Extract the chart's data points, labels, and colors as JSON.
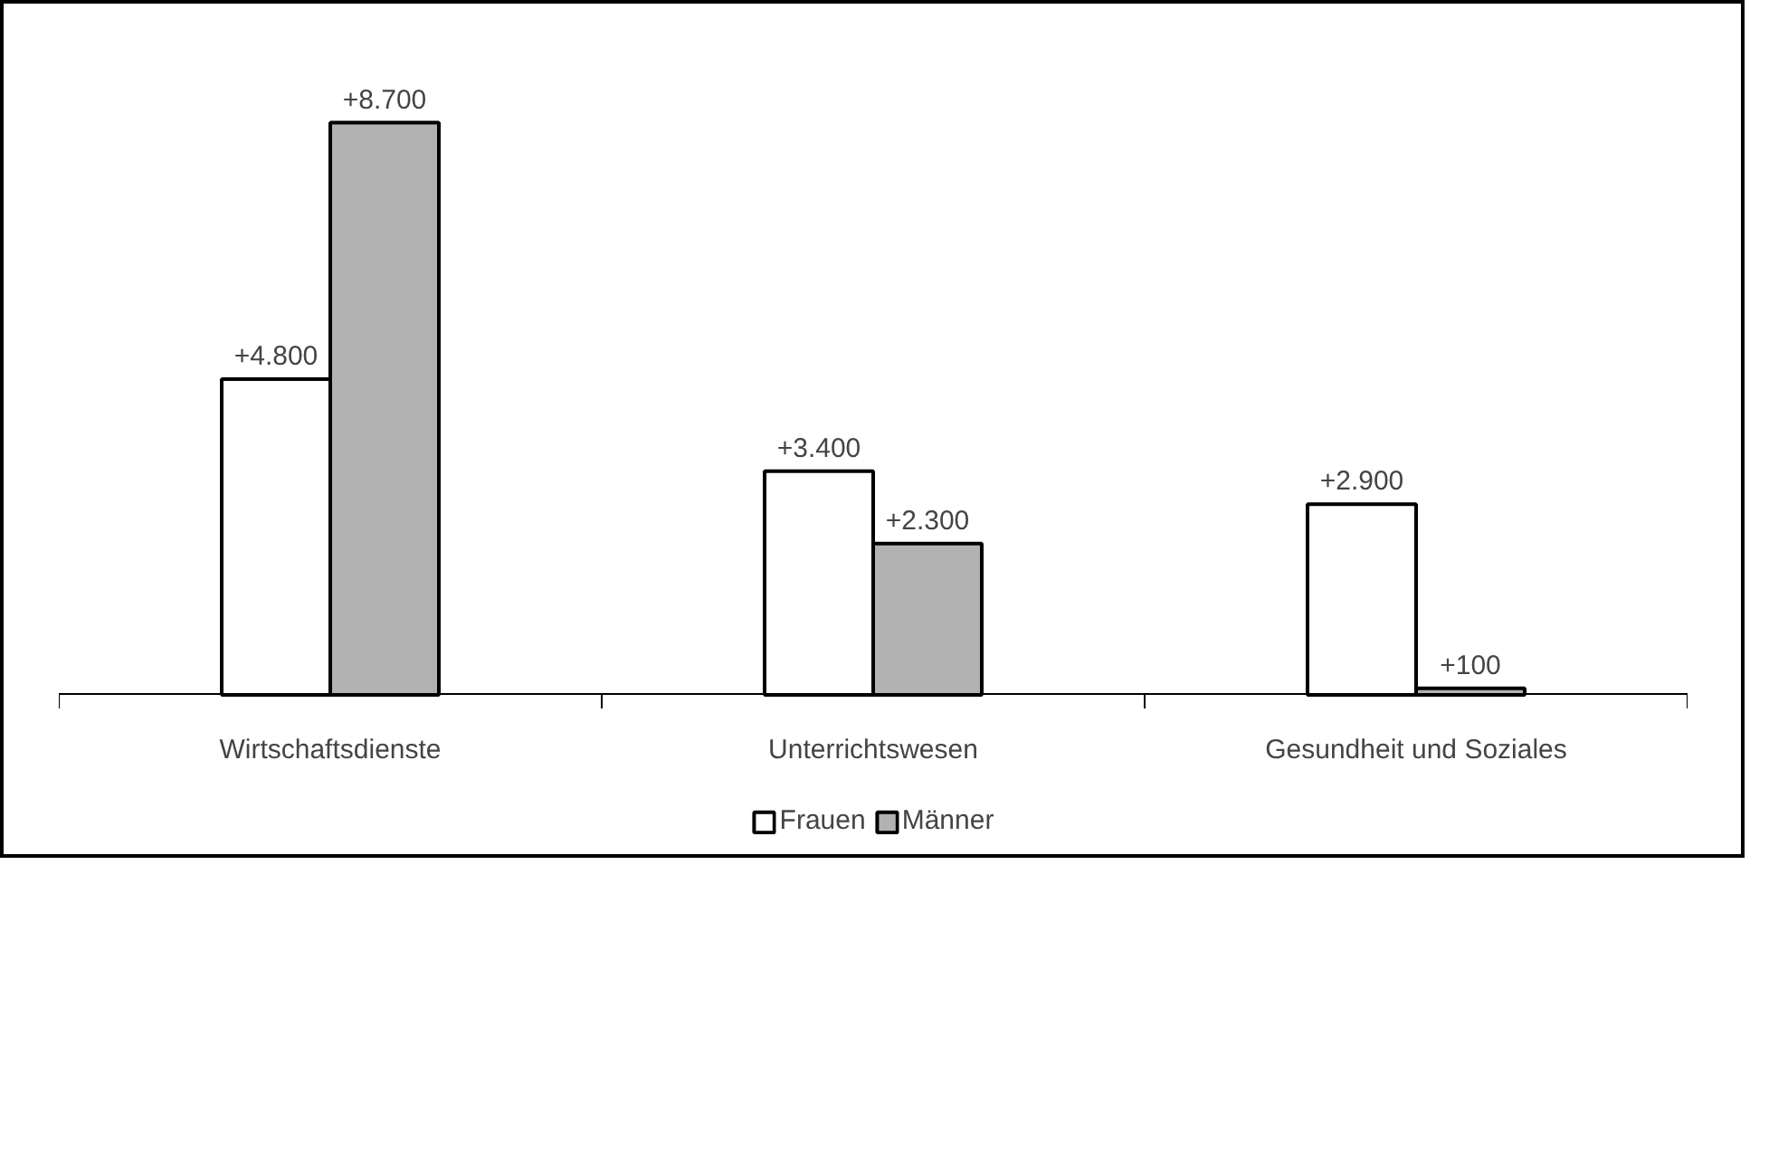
{
  "chart_data": {
    "type": "bar",
    "categories": [
      "Wirtschaftsdienste",
      "Unterrichtswesen",
      "Gesundheit und Soziales"
    ],
    "series": [
      {
        "name": "Frauen",
        "color": "#ffffff",
        "values": [
          4800,
          3400,
          2900
        ],
        "value_labels": [
          "+4.800",
          "+3.400",
          "+2.900"
        ]
      },
      {
        "name": "Männer",
        "color": "#b2b2b2",
        "values": [
          8700,
          2300,
          100
        ],
        "value_labels": [
          "+8.700",
          "+2.300",
          "+100"
        ]
      }
    ],
    "legend": "bottom",
    "grid": false
  }
}
